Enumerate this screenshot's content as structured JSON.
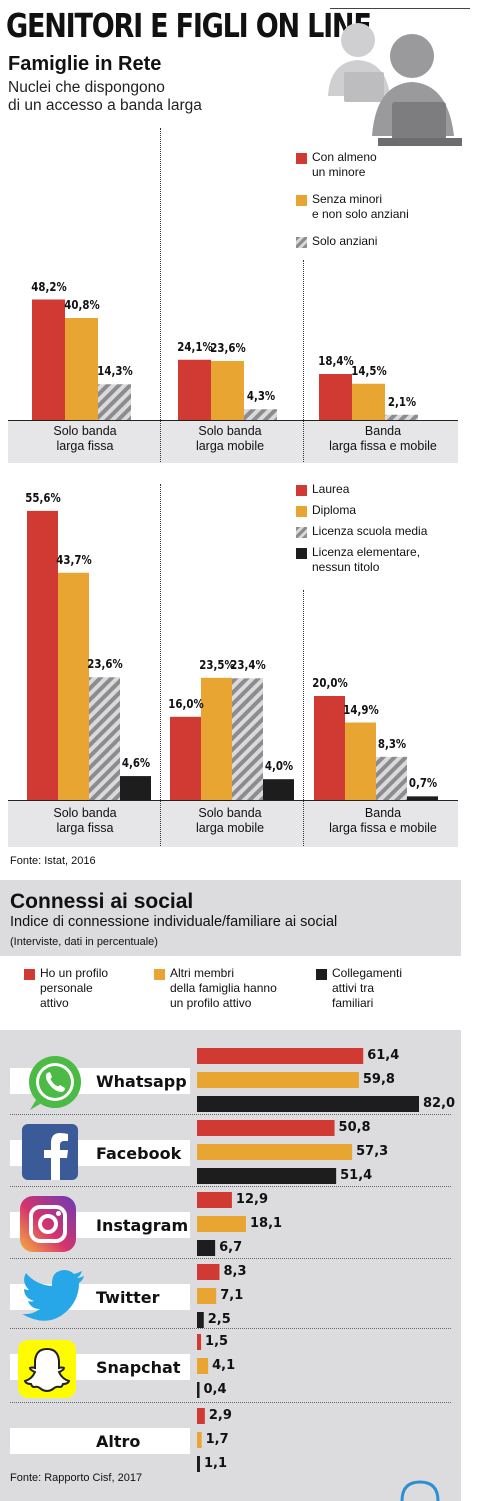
{
  "header": {
    "title": "GENITORI E FIGLI ON LINE",
    "subtitle": "Famiglie in Rete",
    "description_line1": "Nuclei che dispongono",
    "description_line2": "di un accesso a banda larga"
  },
  "colors": {
    "red": "#d13a32",
    "orange": "#e8a531",
    "hatch": "#9a9a9c",
    "black": "#1d1d1d",
    "gray_band": "#e6e6e8",
    "social_bg": "#dcdcde"
  },
  "chart_data": [
    {
      "type": "bar",
      "categories": [
        "Solo banda larga fissa",
        "Solo banda larga mobile",
        "Banda larga fissa e mobile"
      ],
      "category_lines": [
        [
          "Solo banda",
          "larga fissa"
        ],
        [
          "Solo banda",
          "larga mobile"
        ],
        [
          "Banda",
          "larga fissa e mobile"
        ]
      ],
      "series": [
        {
          "name": "Con almeno un minore",
          "legend_lines": [
            "Con almeno",
            "un minore"
          ],
          "color": "red",
          "values": [
            48.2,
            24.1,
            18.4
          ],
          "labels": [
            "48,2%",
            "24,1%",
            "18,4%"
          ]
        },
        {
          "name": "Senza minori e non solo anziani",
          "legend_lines": [
            "Senza minori",
            "e non solo anziani"
          ],
          "color": "orange",
          "values": [
            40.8,
            23.6,
            14.5
          ],
          "labels": [
            "40,8%",
            "23,6%",
            "14,5%"
          ]
        },
        {
          "name": "Solo anziani",
          "legend_lines": [
            "Solo anziani"
          ],
          "color": "hatch",
          "values": [
            14.3,
            4.3,
            2.1
          ],
          "labels": [
            "14,3%",
            "4,3%",
            "2,1%"
          ]
        }
      ],
      "ylim": [
        0,
        50
      ]
    },
    {
      "type": "bar",
      "categories": [
        "Solo banda larga fissa",
        "Solo banda larga mobile",
        "Banda larga fissa e mobile"
      ],
      "category_lines": [
        [
          "Solo banda",
          "larga fissa"
        ],
        [
          "Solo banda",
          "larga mobile"
        ],
        [
          "Banda",
          "larga fissa e mobile"
        ]
      ],
      "series": [
        {
          "name": "Laurea",
          "legend_lines": [
            "Laurea"
          ],
          "color": "red",
          "values": [
            55.6,
            16.0,
            20.0
          ],
          "labels": [
            "55,6%",
            "16,0%",
            "20,0%"
          ]
        },
        {
          "name": "Diploma",
          "legend_lines": [
            "Diploma"
          ],
          "color": "orange",
          "values": [
            43.7,
            23.5,
            14.9
          ],
          "labels": [
            "43,7%",
            "23,5%",
            "14,9%"
          ]
        },
        {
          "name": "Licenza scuola media",
          "legend_lines": [
            "Licenza scuola media"
          ],
          "color": "hatch",
          "values": [
            23.6,
            23.4,
            8.3
          ],
          "labels": [
            "23,6%",
            "23,4%",
            "8,3%"
          ]
        },
        {
          "name": "Licenza elementare, nessun titolo",
          "legend_lines": [
            "Licenza elementare,",
            "nessun titolo"
          ],
          "color": "black",
          "values": [
            4.6,
            4.0,
            0.7
          ],
          "labels": [
            "4,6%",
            "4,0%",
            "0,7%"
          ]
        }
      ],
      "ylim": [
        0,
        60
      ]
    },
    {
      "type": "bar",
      "orientation": "horizontal",
      "title": "Connessi ai social",
      "subtitle": "Indice di connessione individuale/familiare ai social",
      "note": "(Interviste, dati in percentuale)",
      "categories": [
        "Whatsapp",
        "Facebook",
        "Instagram",
        "Twitter",
        "Snapchat",
        "Altro"
      ],
      "series": [
        {
          "name": "Ho un profilo personale attivo",
          "legend_lines": [
            "Ho un profilo",
            "personale",
            "attivo"
          ],
          "color": "red",
          "values": [
            61.4,
            50.8,
            12.9,
            8.3,
            1.5,
            2.9
          ],
          "labels": [
            "61,4",
            "50,8",
            "12,9",
            "8,3",
            "1,5",
            "2,9"
          ]
        },
        {
          "name": "Altri membri della famiglia hanno un profilo attivo",
          "legend_lines": [
            "Altri membri",
            "della famiglia hanno",
            "un profilo attivo"
          ],
          "color": "orange",
          "values": [
            59.8,
            57.3,
            18.1,
            7.1,
            4.1,
            1.7
          ],
          "labels": [
            "59,8",
            "57,3",
            "18,1",
            "7,1",
            "4,1",
            "1,7"
          ]
        },
        {
          "name": "Collegamenti attivi tra familiari",
          "legend_lines": [
            "Collegamenti",
            "attivi tra",
            "familiari"
          ],
          "color": "black",
          "values": [
            82.0,
            51.4,
            6.7,
            2.5,
            0.4,
            1.1
          ],
          "labels": [
            "82,0",
            "51,4",
            "6,7",
            "2,5",
            "0,4",
            "1,1"
          ]
        }
      ],
      "xlim": [
        0,
        82
      ]
    }
  ],
  "sources": {
    "istat": "Fonte: Istat, 2016",
    "cisf": "Fonte: Rapporto Cisf, 2017"
  },
  "icons": [
    "users-icon",
    "whatsapp-icon",
    "facebook-icon",
    "instagram-icon",
    "twitter-icon",
    "snapchat-icon"
  ]
}
